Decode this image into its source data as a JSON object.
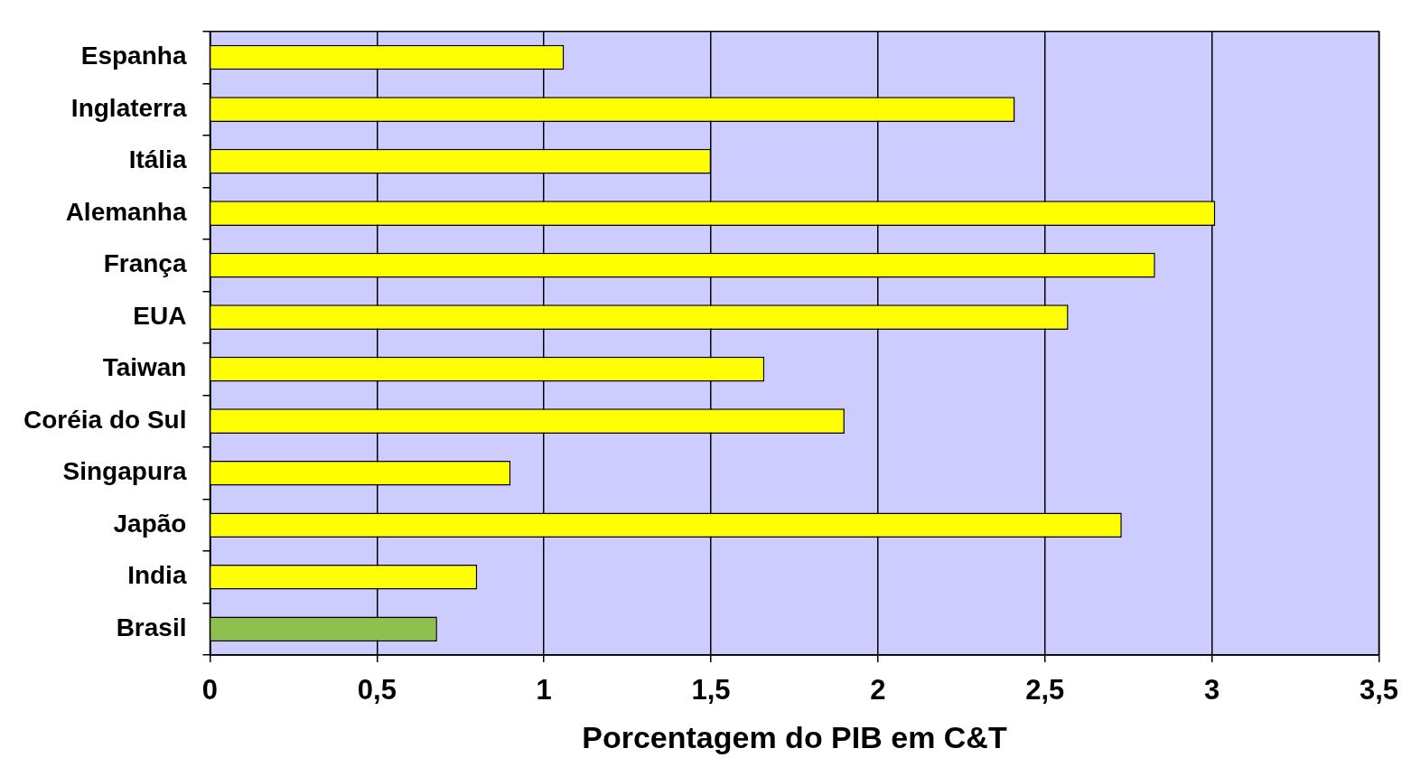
{
  "chart_data": {
    "type": "bar",
    "orientation": "horizontal",
    "categories": [
      "Espanha",
      "Inglaterra",
      "Itália",
      "Alemanha",
      "França",
      "EUA",
      "Taiwan",
      "Coréia do Sul",
      "Singapura",
      "Japão",
      "India",
      "Brasil"
    ],
    "values": [
      1.06,
      2.41,
      1.5,
      3.01,
      2.83,
      2.57,
      1.66,
      1.9,
      0.9,
      2.73,
      0.8,
      0.68
    ],
    "colors": [
      "#ffff00",
      "#ffff00",
      "#ffff00",
      "#ffff00",
      "#ffff00",
      "#ffff00",
      "#ffff00",
      "#ffff00",
      "#ffff00",
      "#ffff00",
      "#ffff00",
      "#8dc04f"
    ],
    "xlabel": "Porcentagem do PIB em C&T",
    "xlim": [
      0,
      3.5
    ],
    "xticks": [
      0,
      {
        "value": 0.5,
        "label": "0,5"
      },
      1,
      {
        "value": 1.5,
        "label": "1,5"
      },
      2,
      {
        "value": 2.5,
        "label": "2,5"
      },
      3,
      {
        "value": 3.5,
        "label": "3,5"
      }
    ],
    "grid": "x"
  }
}
